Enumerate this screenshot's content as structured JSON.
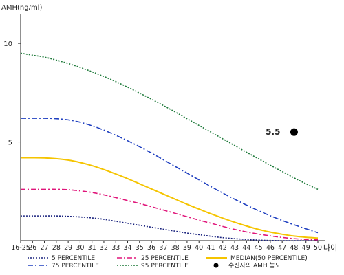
{
  "chart_data": {
    "type": "line",
    "ylabel": "AMH(ng/ml)",
    "xlabel": "나이",
    "ylim": [
      0,
      11.5
    ],
    "yticks": [
      5,
      10
    ],
    "categories": [
      "16-25",
      "26",
      "27",
      "28",
      "29",
      "30",
      "31",
      "32",
      "33",
      "34",
      "35",
      "36",
      "37",
      "38",
      "39",
      "40",
      "41",
      "42",
      "43",
      "44",
      "45",
      "46",
      "47",
      "48",
      "49",
      "50"
    ],
    "series": [
      {
        "name": "5 PERCENTILE",
        "color": "#1a237e",
        "dash": "2,2",
        "values": [
          1.25,
          1.25,
          1.25,
          1.25,
          1.23,
          1.2,
          1.15,
          1.08,
          0.98,
          0.88,
          0.78,
          0.68,
          0.58,
          0.48,
          0.38,
          0.3,
          0.22,
          0.15,
          0.1,
          0.06,
          0.03,
          0.01,
          0.0,
          0.0,
          0.0,
          0.0
        ]
      },
      {
        "name": "25 PERCENTILE",
        "color": "#e0157a",
        "dash": "7,3,2,3",
        "values": [
          2.6,
          2.6,
          2.6,
          2.6,
          2.58,
          2.52,
          2.44,
          2.32,
          2.18,
          2.03,
          1.88,
          1.72,
          1.55,
          1.38,
          1.21,
          1.04,
          0.88,
          0.72,
          0.57,
          0.44,
          0.33,
          0.24,
          0.16,
          0.1,
          0.06,
          0.04
        ]
      },
      {
        "name": "MEDIAN(50 PERCENTILE)",
        "color": "#f5c400",
        "dash": "",
        "values": [
          4.2,
          4.2,
          4.19,
          4.15,
          4.08,
          3.96,
          3.8,
          3.6,
          3.38,
          3.14,
          2.88,
          2.62,
          2.36,
          2.1,
          1.84,
          1.6,
          1.36,
          1.14,
          0.93,
          0.74,
          0.57,
          0.43,
          0.32,
          0.23,
          0.17,
          0.13
        ]
      },
      {
        "name": "75 PERCENTILE",
        "color": "#2040c0",
        "dash": "8,3,2,3",
        "values": [
          6.2,
          6.2,
          6.2,
          6.18,
          6.12,
          6.0,
          5.82,
          5.6,
          5.34,
          5.06,
          4.76,
          4.44,
          4.1,
          3.76,
          3.42,
          3.08,
          2.74,
          2.41,
          2.1,
          1.8,
          1.52,
          1.26,
          1.02,
          0.8,
          0.6,
          0.4
        ]
      },
      {
        "name": "95 PERCENTILE",
        "color": "#1e7a3a",
        "dash": "2,2",
        "values": [
          9.5,
          9.4,
          9.3,
          9.15,
          8.98,
          8.78,
          8.56,
          8.32,
          8.06,
          7.78,
          7.48,
          7.17,
          6.85,
          6.52,
          6.18,
          5.84,
          5.5,
          5.16,
          4.82,
          4.48,
          4.15,
          3.82,
          3.5,
          3.18,
          2.88,
          2.6
        ]
      }
    ],
    "annotation": {
      "label": "5.5",
      "x": "48",
      "y": 5.5
    },
    "legend": {
      "placement": "bottom",
      "patient_label": "수진자의 AMH 농도"
    },
    "grid": false
  }
}
